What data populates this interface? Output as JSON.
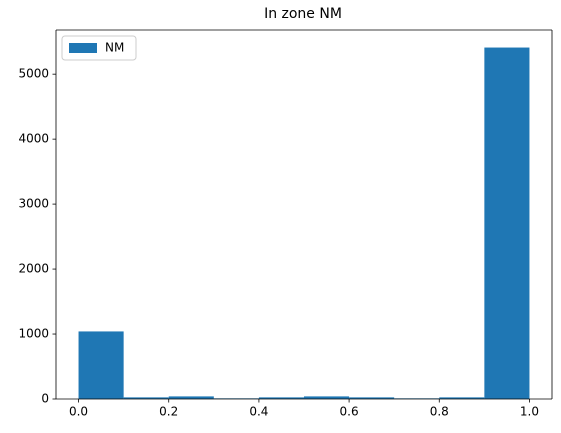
{
  "chart_data": {
    "type": "histogram",
    "title": "In zone NM",
    "bins": [
      0,
      0.1,
      0.2,
      0.3,
      0.4,
      0.5,
      0.6,
      0.7,
      0.8,
      0.9,
      1
    ],
    "series": [
      {
        "name": "NM",
        "color": "#1f77b4",
        "values": [
          1040,
          25,
          40,
          10,
          25,
          40,
          25,
          10,
          25,
          5410
        ]
      }
    ],
    "xlim": [
      -0.05,
      1.05
    ],
    "xticks": [
      {
        "value": 0,
        "label": "0.0"
      },
      0.2,
      0.4,
      0.6,
      0.8,
      {
        "value": 1,
        "label": "1.0"
      }
    ],
    "ylim": [
      0,
      5680
    ],
    "yticks": [
      0,
      1000,
      2000,
      3000,
      4000,
      5000
    ],
    "legend": "upper left",
    "grid": false
  }
}
